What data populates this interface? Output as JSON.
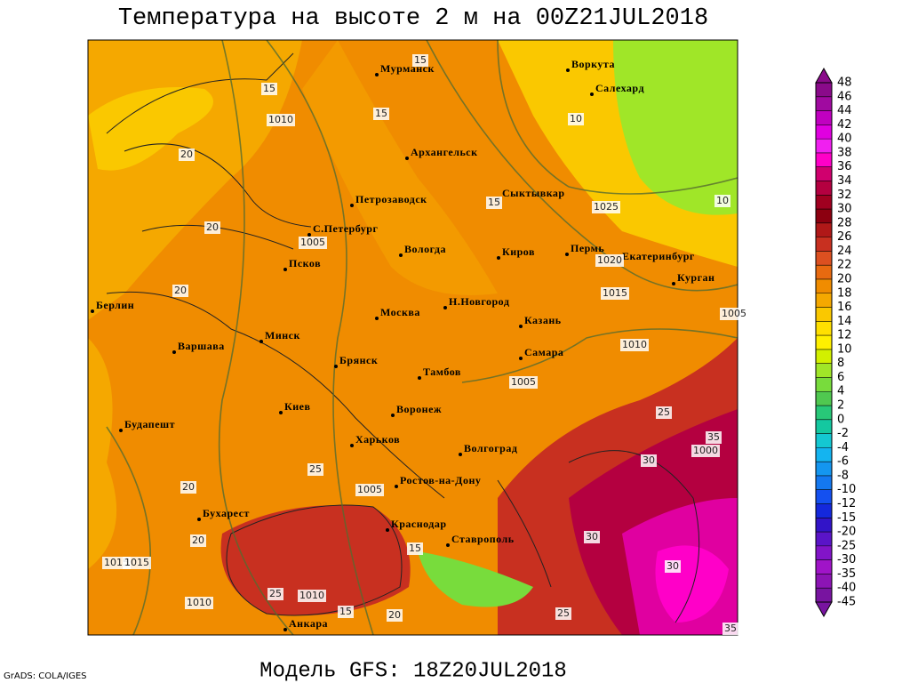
{
  "title": "Температура на высоте 2 м на 00Z21JUL2018",
  "subtitle": "Модель GFS: 18Z20JUL2018",
  "credit": "GrADS: COLA/IGES",
  "cities": [
    "Мурманск",
    "Воркута",
    "Салехард",
    "Архангельск",
    "Сыктывкар",
    "Петрозаводск",
    "С.Петербург",
    "Вологда",
    "Пермь",
    "Екатеринбург",
    "Киров",
    "Псков",
    "Курган",
    "Берлин",
    "Н.Новгород",
    "Москва",
    "Казань",
    "Варшава",
    "Минск",
    "Самара",
    "Брянск",
    "Тамбов",
    "Киев",
    "Воронеж",
    "Будапешт",
    "Харьков",
    "Волгоград",
    "Ростов-на-Дону",
    "Бухарест",
    "Краснодар",
    "Ставрополь",
    "Анкара"
  ],
  "contour_labels": [
    "1010",
    "1005",
    "1025",
    "1020",
    "1015",
    "1015",
    "1010",
    "1005",
    "1005",
    "1000",
    "1005",
    "1010",
    "1015",
    "1010",
    "15",
    "15",
    "20",
    "15",
    "10",
    "10",
    "15",
    "20",
    "20",
    "20",
    "25",
    "25",
    "30",
    "30",
    "30",
    "35",
    "20",
    "15",
    "15",
    "20",
    "25",
    "25",
    "35"
  ],
  "colorbar": {
    "ticks": [
      48,
      46,
      44,
      42,
      40,
      38,
      36,
      34,
      32,
      30,
      28,
      26,
      24,
      22,
      20,
      18,
      16,
      14,
      12,
      10,
      8,
      6,
      4,
      2,
      0,
      -2,
      -4,
      -6,
      -8,
      -10,
      -12,
      -15,
      -20,
      -25,
      -30,
      -35,
      -40,
      -45
    ],
    "colors": [
      "#8a0a8a",
      "#a00aa0",
      "#c000c0",
      "#e000e0",
      "#f020f0",
      "#ff00c8",
      "#d0006e",
      "#b40040",
      "#a00020",
      "#8c0010",
      "#b01818",
      "#c83020",
      "#dc5020",
      "#e86a10",
      "#f08c00",
      "#f5a800",
      "#fac800",
      "#ffe000",
      "#fff000",
      "#d2f000",
      "#a0e628",
      "#78dc3c",
      "#50c850",
      "#28c878",
      "#14c8a0",
      "#14c8d2",
      "#14b4f0",
      "#1496f0",
      "#1478f0",
      "#1450f0",
      "#1428dc",
      "#3214c8",
      "#5a14c8",
      "#8214c8",
      "#a014c8",
      "#8c14b4",
      "#7814a0"
    ]
  }
}
